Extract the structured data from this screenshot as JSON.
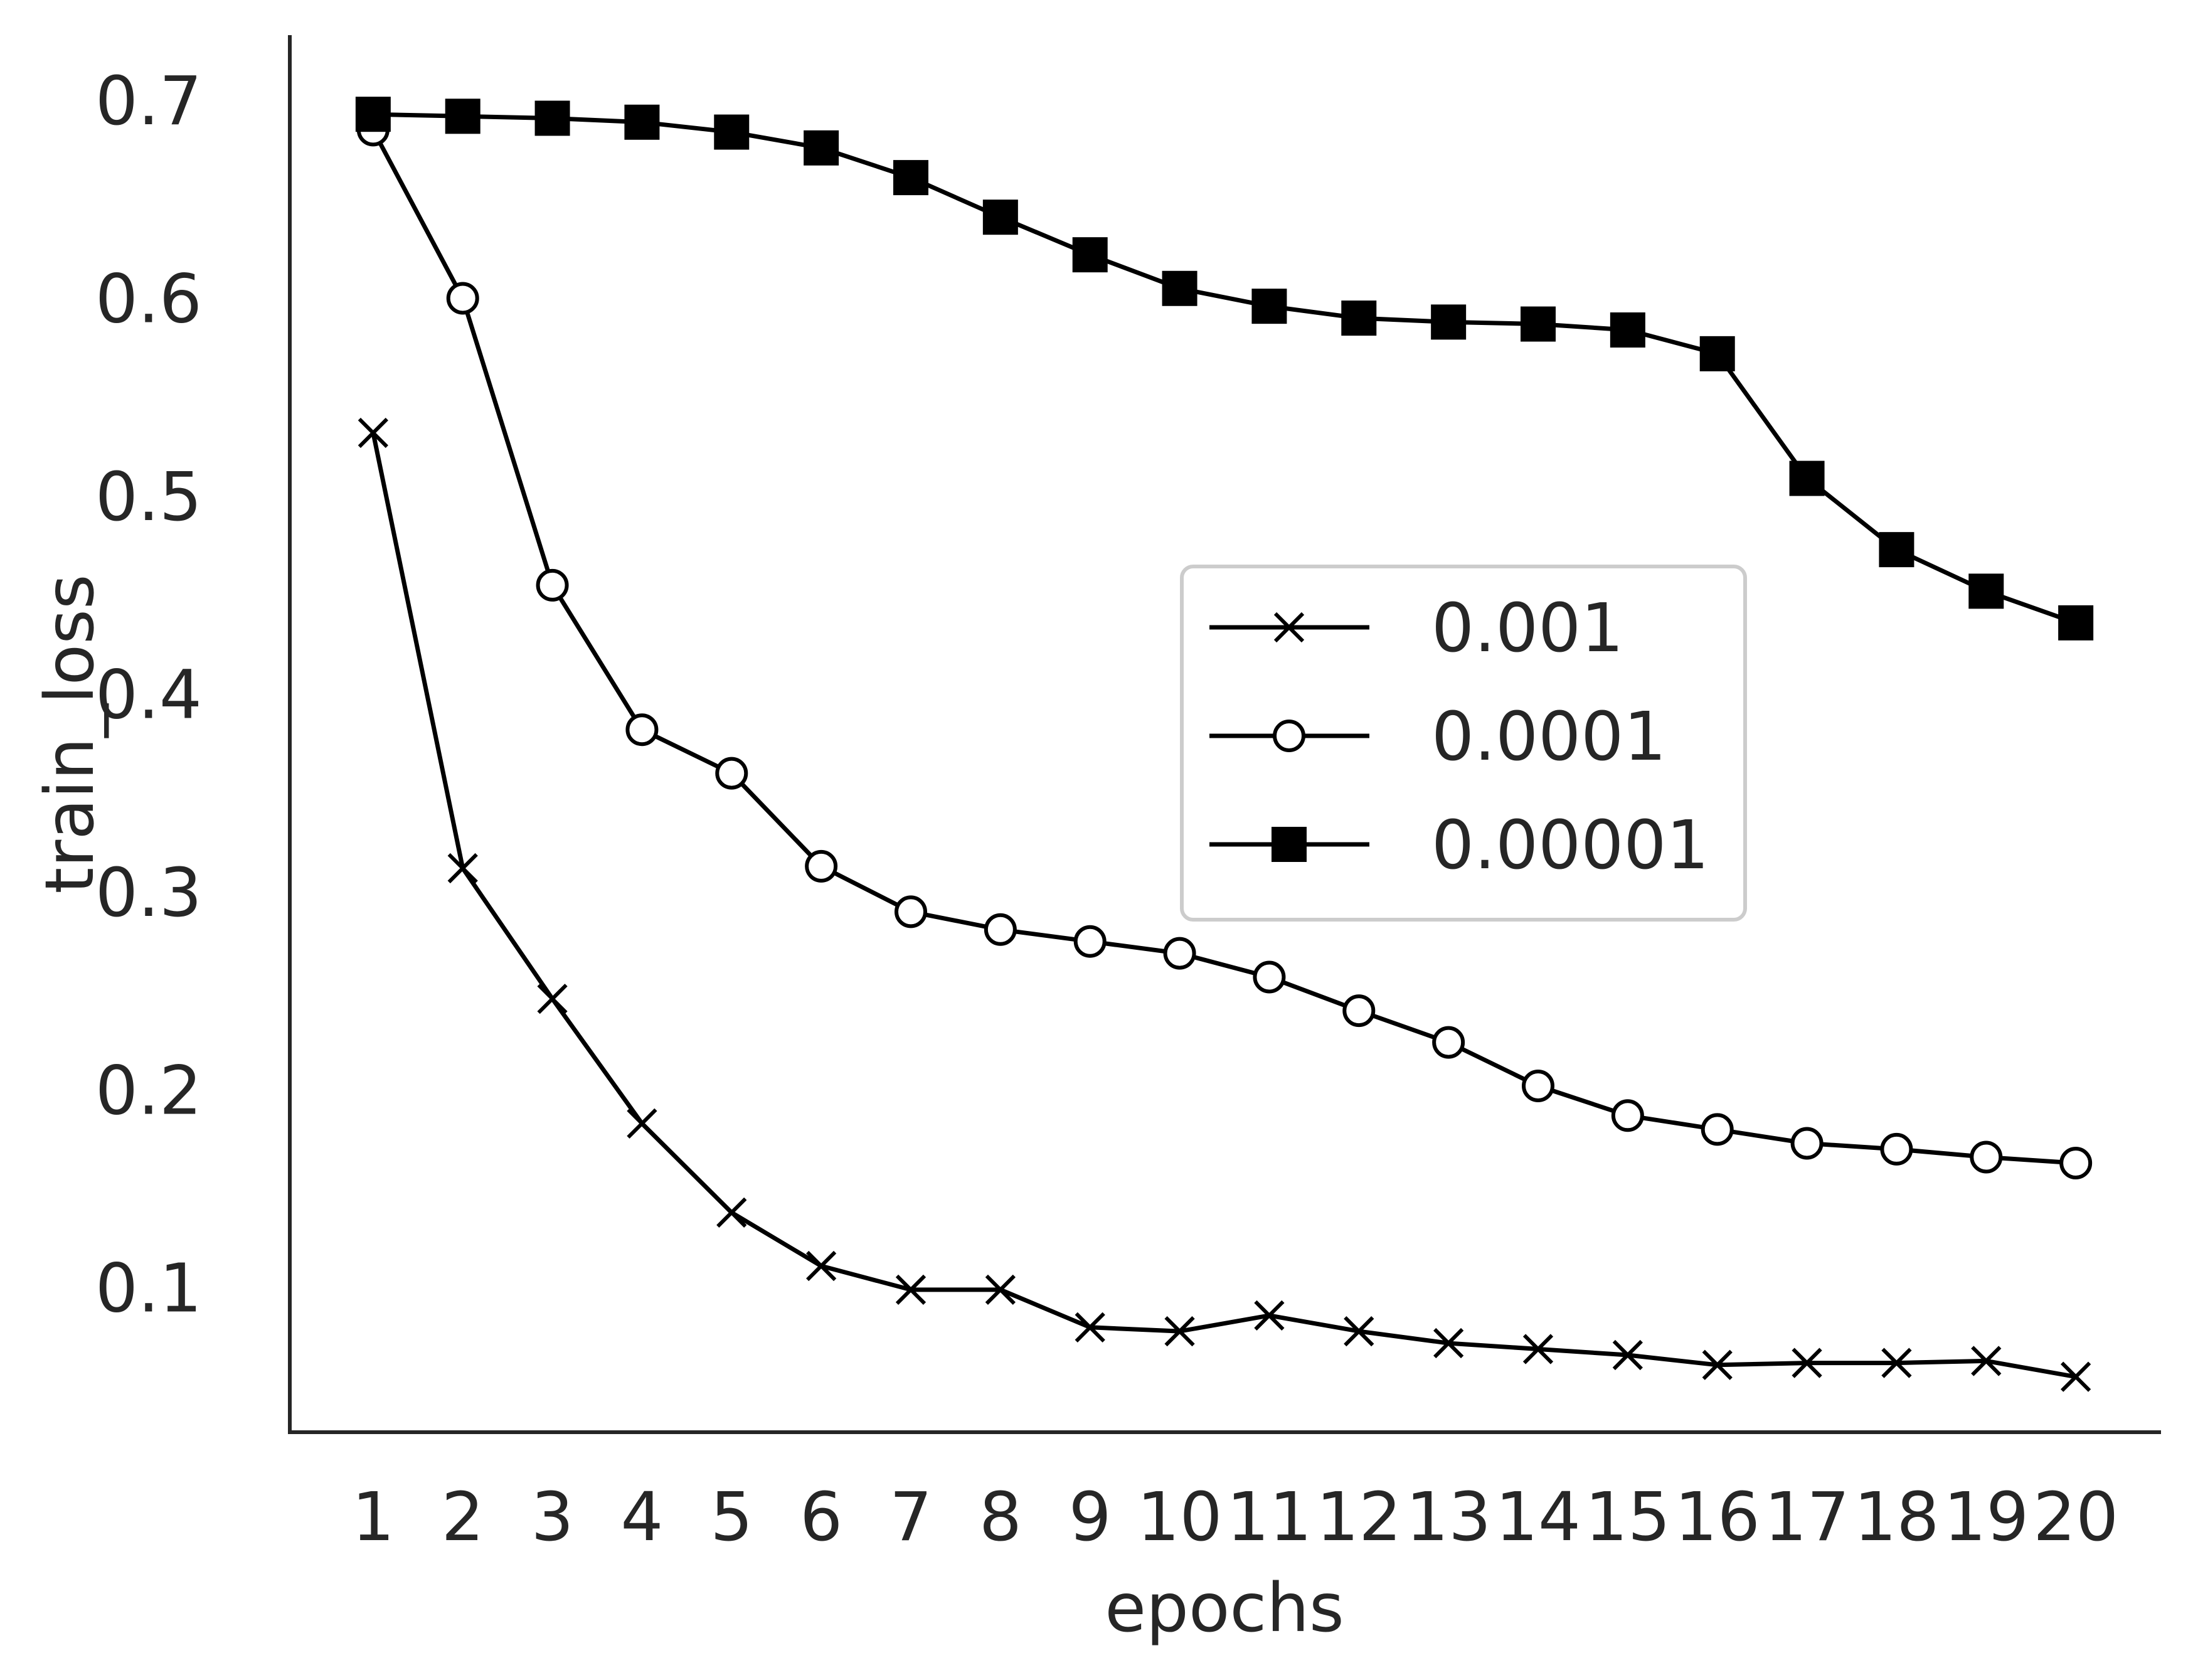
{
  "chart_data": {
    "type": "line",
    "title": "",
    "xlabel": "epochs",
    "ylabel": "train_loss",
    "x": [
      1,
      2,
      3,
      4,
      5,
      6,
      7,
      8,
      9,
      10,
      11,
      12,
      13,
      14,
      15,
      16,
      17,
      18,
      19,
      20
    ],
    "x_tick_labels": [
      "1",
      "2",
      "3",
      "4",
      "5",
      "6",
      "7",
      "8",
      "9",
      "10",
      "11",
      "12",
      "13",
      "14",
      "15",
      "16",
      "17",
      "18",
      "19",
      "20"
    ],
    "y_ticks": [
      0.1,
      0.2,
      0.3,
      0.4,
      0.5,
      0.6,
      0.7
    ],
    "y_tick_labels": [
      "0.1",
      "0.2",
      "0.3",
      "0.4",
      "0.5",
      "0.6",
      "0.7"
    ],
    "xlim": [
      0.07,
      20.93
    ],
    "ylim": [
      0.027,
      0.733
    ],
    "grid": false,
    "legend_position": "center-right",
    "series": [
      {
        "name": "0.001",
        "marker": "x",
        "color": "#000000",
        "values": [
          0.532,
          0.312,
          0.246,
          0.183,
          0.138,
          0.111,
          0.099,
          0.099,
          0.08,
          0.078,
          0.086,
          0.078,
          0.072,
          0.069,
          0.066,
          0.061,
          0.062,
          0.062,
          0.063,
          0.055
        ]
      },
      {
        "name": "0.0001",
        "marker": "circle-open",
        "color": "#000000",
        "values": [
          0.685,
          0.6,
          0.455,
          0.382,
          0.36,
          0.313,
          0.29,
          0.281,
          0.275,
          0.269,
          0.257,
          0.24,
          0.224,
          0.202,
          0.187,
          0.18,
          0.173,
          0.17,
          0.166,
          0.163
        ]
      },
      {
        "name": "0.00001",
        "marker": "square-filled",
        "color": "#000000",
        "values": [
          0.693,
          0.692,
          0.691,
          0.689,
          0.684,
          0.676,
          0.661,
          0.641,
          0.622,
          0.605,
          0.596,
          0.59,
          0.588,
          0.587,
          0.584,
          0.572,
          0.509,
          0.473,
          0.452,
          0.436
        ]
      }
    ]
  }
}
